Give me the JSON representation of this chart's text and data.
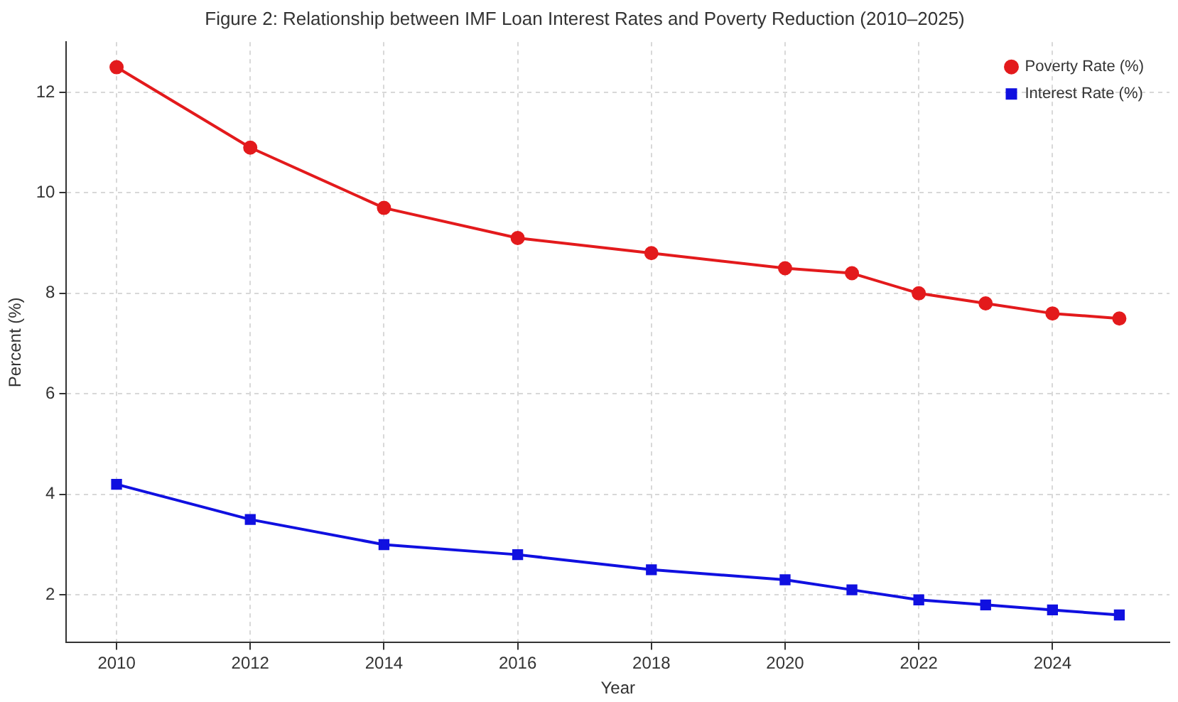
{
  "chart_data": {
    "type": "line",
    "title": "Figure 2: Relationship between IMF Loan Interest Rates and Poverty Reduction (2010–2025)",
    "xlabel": "Year",
    "ylabel": "Percent (%)",
    "x": [
      2010,
      2012,
      2014,
      2016,
      2018,
      2020,
      2021,
      2022,
      2023,
      2024,
      2025
    ],
    "series": [
      {
        "name": "Poverty Rate (%)",
        "color": "#e31a1c",
        "marker": "circle",
        "values": [
          12.5,
          10.9,
          9.7,
          9.1,
          8.8,
          8.5,
          8.4,
          8.0,
          7.8,
          7.6,
          7.5
        ]
      },
      {
        "name": "Interest Rate (%)",
        "color": "#1010e0",
        "marker": "square",
        "values": [
          4.2,
          3.5,
          3.0,
          2.8,
          2.5,
          2.3,
          2.1,
          1.9,
          1.8,
          1.7,
          1.6
        ]
      }
    ],
    "xlim": [
      2009.25,
      2025.75
    ],
    "xticks": [
      2010,
      2012,
      2014,
      2016,
      2018,
      2020,
      2022,
      2024
    ],
    "ylim": [
      1.05,
      13.0
    ],
    "yticks": [
      2,
      4,
      6,
      8,
      10,
      12
    ],
    "grid": true,
    "legend": "top right",
    "line_style": "solid"
  }
}
